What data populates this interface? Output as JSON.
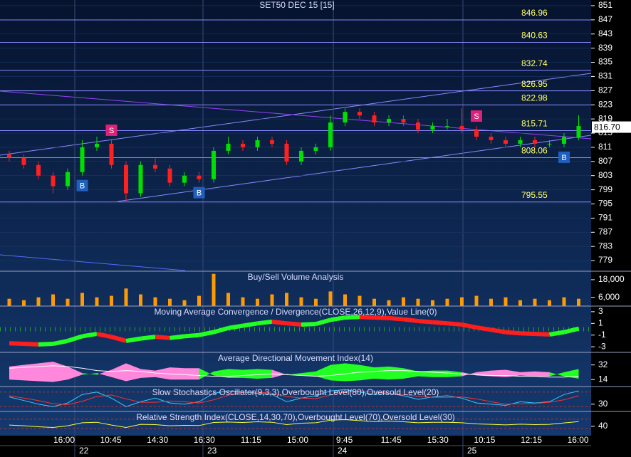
{
  "chart_data": [
    {
      "type": "candlestick",
      "title": "SET50 DEC 15  [15]",
      "open": [
        809,
        808,
        806,
        803,
        800,
        804,
        811,
        812,
        806,
        798,
        806,
        805,
        801,
        803,
        802,
        810,
        812,
        811,
        813,
        812,
        807,
        810,
        811,
        818,
        821,
        820,
        818,
        819,
        818,
        816,
        817,
        817,
        816,
        814,
        813,
        812,
        813,
        812,
        812,
        814
      ],
      "high": [
        810,
        809,
        807,
        804,
        805,
        813,
        814,
        813,
        807,
        807,
        808,
        806,
        804,
        804,
        811,
        814,
        813,
        814,
        814,
        813,
        811,
        812,
        820,
        822,
        822,
        821,
        820,
        820,
        819,
        818,
        819,
        822,
        817,
        815,
        814,
        814,
        814,
        813,
        815,
        820
      ],
      "low": [
        807,
        805,
        802,
        798,
        799,
        803,
        810,
        805,
        795.5,
        797,
        804,
        800,
        800,
        801,
        801,
        809,
        810,
        810,
        811,
        806,
        806,
        809,
        810,
        817,
        819,
        817,
        817,
        817,
        815,
        815,
        816,
        815,
        813,
        812,
        811,
        811,
        811,
        811,
        811,
        813
      ],
      "close": [
        808,
        806,
        803,
        800,
        804,
        811,
        812,
        806,
        798,
        806,
        805,
        801,
        803,
        802,
        810,
        812,
        811,
        813,
        812,
        807,
        810,
        811,
        818,
        821,
        820,
        818,
        819,
        818,
        816,
        817,
        817,
        816,
        814,
        813,
        812,
        813,
        812,
        812,
        814,
        817
      ],
      "up_color": "#00e000",
      "down_color": "#ff2020",
      "ylim": [
        776.2,
        852.6
      ],
      "yticks": [
        851,
        847,
        843,
        839,
        835,
        831,
        827,
        823,
        819,
        815,
        811,
        807,
        803,
        799,
        795,
        791,
        787,
        783,
        779
      ],
      "levels": [
        846.96,
        840.63,
        832.74,
        826.95,
        822.98,
        815.71,
        808.06,
        795.55
      ],
      "level_color": "#8a8aff",
      "last_price": {
        "value": 816.7,
        "label": "816.70"
      },
      "signals": [
        {
          "label": "B",
          "index": 5
        },
        {
          "label": "S",
          "index": 7
        },
        {
          "label": "B",
          "index": 13
        },
        {
          "label": "S",
          "index": 32
        },
        {
          "label": "B",
          "index": 38
        }
      ]
    },
    {
      "type": "bar",
      "title": "Buy/Sell Volume Analysis",
      "values": [
        5000,
        4000,
        6000,
        8000,
        5000,
        9000,
        6000,
        7000,
        12000,
        8000,
        6000,
        5000,
        4000,
        7000,
        22000,
        9000,
        6000,
        5000,
        8000,
        9000,
        6000,
        5000,
        10000,
        8000,
        7000,
        5000,
        4000,
        6000,
        5000,
        4000,
        5000,
        6000,
        7000,
        5000,
        6000,
        4000,
        5000,
        4000,
        6000,
        5000
      ],
      "color": "#ff9a00",
      "ylim": [
        0,
        23300
      ],
      "yticks": [
        {
          "value": 18000,
          "label": "18,000"
        },
        {
          "value": 6000,
          "label": "6,000"
        }
      ]
    },
    {
      "type": "macd",
      "title": "Moving Average Convergence / Divergence(CLOSE,26,12,9),Value Line(0)",
      "values": [
        -2.4,
        -2.5,
        -2.6,
        -2.5,
        -2.0,
        -1.2,
        -0.8,
        -1.3,
        -2.0,
        -1.6,
        -1.3,
        -1.5,
        -1.2,
        -1.0,
        -0.5,
        0.2,
        0.6,
        1.0,
        1.3,
        1.0,
        0.8,
        0.9,
        1.6,
        2.0,
        2.1,
        2.0,
        1.9,
        1.7,
        1.4,
        1.2,
        1.0,
        0.8,
        0.3,
        -0.1,
        -0.5,
        -0.7,
        -0.8,
        -0.9,
        -0.5,
        0.1
      ],
      "rise_color": "#22ff22",
      "fall_color": "#ff1e1e",
      "value_line": 0,
      "ylim": [
        -3.96,
        3.84
      ],
      "yticks": [
        3,
        1,
        -1,
        -3
      ]
    },
    {
      "type": "adx",
      "title": "Average Directional Movement Index(14)",
      "series": [
        {
          "color": "#22ff22",
          "values": [
            14,
            13,
            12,
            11,
            14,
            20,
            22,
            17,
            12,
            16,
            17,
            14,
            14,
            14,
            24,
            27,
            26,
            27,
            26,
            20,
            22,
            24,
            32,
            34,
            32,
            29,
            30,
            28,
            24,
            25,
            25,
            23,
            19,
            18,
            17,
            19,
            18,
            18,
            23,
            27
          ]
        },
        {
          "color": "#ff88dd",
          "values": [
            30,
            32,
            34,
            36,
            30,
            22,
            20,
            26,
            34,
            27,
            25,
            29,
            28,
            28,
            19,
            16,
            16,
            15,
            16,
            21,
            19,
            18,
            13,
            12,
            13,
            15,
            14,
            15,
            18,
            17,
            17,
            18,
            23,
            25,
            26,
            23,
            24,
            23,
            18,
            15
          ]
        },
        {
          "color": "#ffffff",
          "values": [
            28,
            29,
            30,
            31,
            30,
            28,
            25,
            24,
            25,
            24,
            22,
            21,
            20,
            19,
            18,
            18,
            19,
            20,
            21,
            20,
            19,
            18,
            19,
            21,
            23,
            24,
            25,
            25,
            24,
            23,
            22,
            21,
            20,
            19,
            19,
            18,
            18,
            17,
            17,
            18
          ]
        }
      ],
      "ylim": [
        5.4,
        46.6
      ],
      "yticks": [
        32,
        14
      ]
    },
    {
      "type": "line",
      "title": "Slow Stochastics Oscillator(9,3,3),Overbought Level(80),Oversold Level(20)",
      "series": [
        {
          "color": "#33ccff",
          "values": [
            60,
            45,
            30,
            20,
            35,
            70,
            80,
            55,
            20,
            40,
            55,
            35,
            30,
            40,
            75,
            85,
            80,
            75,
            70,
            40,
            55,
            65,
            85,
            90,
            80,
            70,
            75,
            65,
            50,
            60,
            65,
            55,
            35,
            30,
            25,
            40,
            35,
            40,
            70,
            85
          ]
        },
        {
          "color": "#ff3030",
          "values": [
            65,
            55,
            45,
            32,
            28,
            42,
            62,
            68,
            52,
            38,
            38,
            43,
            40,
            35,
            48,
            67,
            80,
            80,
            75,
            62,
            55,
            53,
            68,
            80,
            85,
            80,
            75,
            70,
            63,
            58,
            58,
            60,
            52,
            40,
            30,
            32,
            33,
            38,
            48,
            65
          ]
        }
      ],
      "levels": [
        80,
        20
      ],
      "level_color": "#c03030",
      "ylim": [
        0,
        100
      ],
      "yticks": [
        30
      ]
    },
    {
      "type": "line",
      "title": "Relative Strength Index(CLOSE,14,30,70),Overbought Level(70),Oversold Level(30)",
      "series": [
        {
          "color": "#ffff33",
          "values": [
            45,
            42,
            38,
            35,
            42,
            55,
            57,
            45,
            35,
            48,
            47,
            42,
            44,
            43,
            56,
            58,
            56,
            59,
            57,
            47,
            53,
            55,
            66,
            68,
            64,
            60,
            62,
            59,
            55,
            57,
            57,
            55,
            50,
            48,
            46,
            49,
            47,
            48,
            54,
            60
          ]
        }
      ],
      "levels": [
        70,
        30
      ],
      "level_color": "#c03030",
      "ylim": [
        0,
        100
      ],
      "yticks": [
        40
      ]
    }
  ],
  "x_axis": {
    "times": [
      "16:00",
      "10:45",
      "14:30",
      "16:30",
      "11:15",
      "15:00",
      "9:45",
      "11:45",
      "15:30",
      "10:15",
      "12:15",
      "16:00"
    ],
    "days": [
      "22",
      "23",
      "24",
      "25"
    ]
  }
}
